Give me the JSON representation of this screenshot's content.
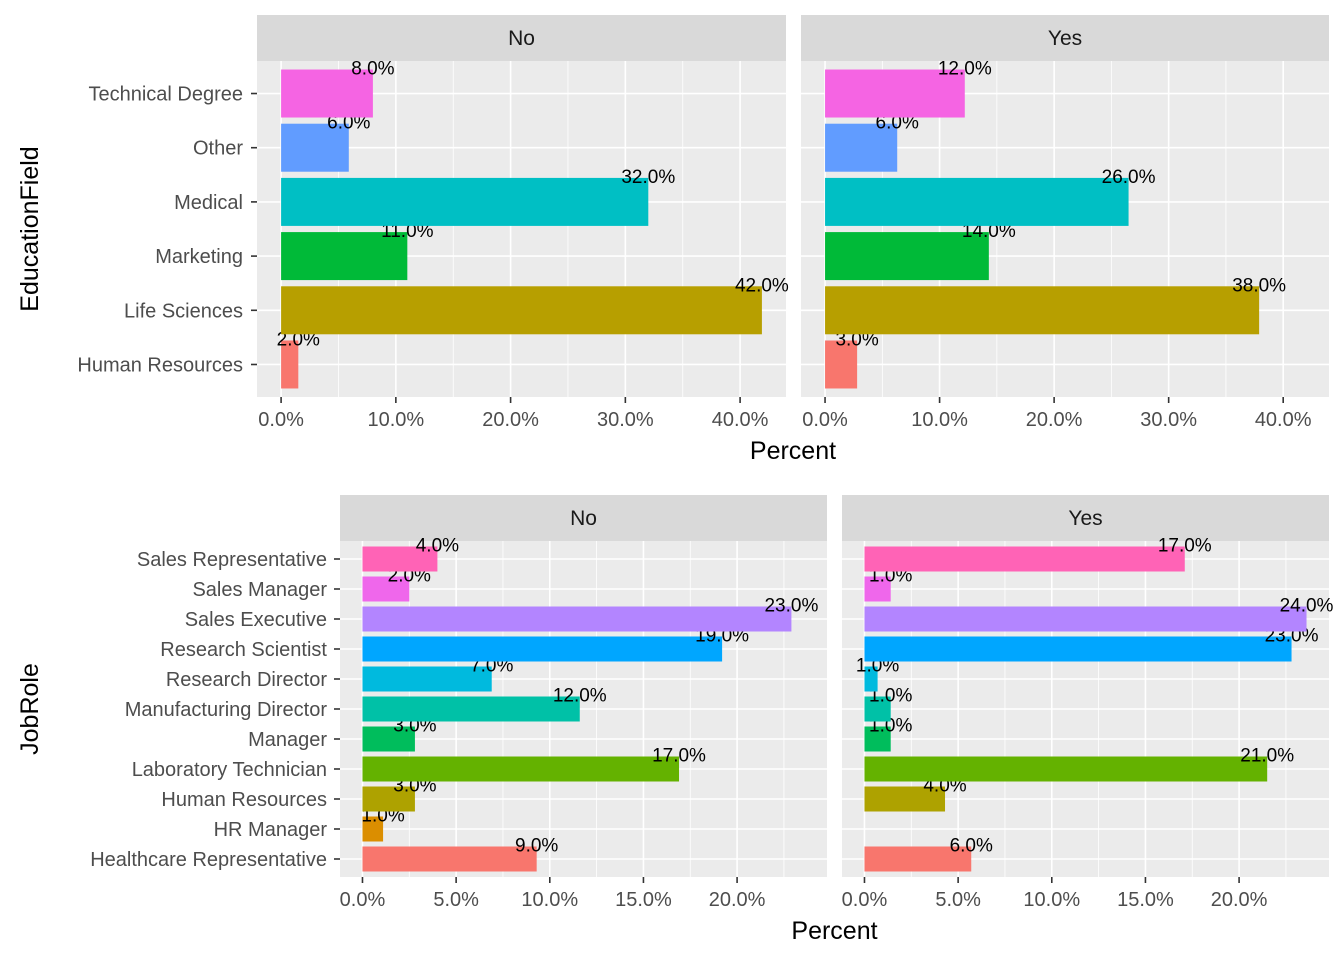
{
  "chart_data": [
    {
      "type": "bar",
      "orientation": "horizontal",
      "facet_strips": [
        "No",
        "Yes"
      ],
      "categories": [
        "Human Resources",
        "Life Sciences",
        "Marketing",
        "Medical",
        "Other",
        "Technical Degree"
      ],
      "colors": [
        "#F8766D",
        "#B79F00",
        "#00BA38",
        "#00BFC4",
        "#619CFF",
        "#F564E3"
      ],
      "facets": [
        {
          "strip": "No",
          "values": [
            1.5,
            41.9,
            11.0,
            32.0,
            5.9,
            8.0
          ],
          "labels": [
            "2.0%",
            "42.0%",
            "11.0%",
            "32.0%",
            "6.0%",
            "8.0%"
          ]
        },
        {
          "strip": "Yes",
          "values": [
            2.8,
            37.9,
            14.3,
            26.5,
            6.3,
            12.2
          ],
          "labels": [
            "3.0%",
            "38.0%",
            "14.0%",
            "26.0%",
            "6.0%",
            "12.0%"
          ]
        }
      ],
      "xticks": [
        0,
        10,
        20,
        30,
        40
      ],
      "xtick_labels": [
        "0.0%",
        "10.0%",
        "20.0%",
        "30.0%",
        "40.0%"
      ],
      "xlim": [
        -2.1,
        44.0
      ],
      "xlabel": "Percent",
      "ylabel": "EducationField",
      "grid": true,
      "legend": "none"
    },
    {
      "type": "bar",
      "orientation": "horizontal",
      "facet_strips": [
        "No",
        "Yes"
      ],
      "categories": [
        "Healthcare Representative",
        "HR Manager",
        "Human Resources",
        "Laboratory Technician",
        "Manager",
        "Manufacturing Director",
        "Research Director",
        "Research Scientist",
        "Sales Executive",
        "Sales Manager",
        "Sales Representative"
      ],
      "colors": [
        "#F8766D",
        "#DB8E00",
        "#AEA200",
        "#64B200",
        "#00BD5C",
        "#00C1A7",
        "#00BADE",
        "#00A6FF",
        "#B385FF",
        "#EF67EB",
        "#FF63B6"
      ],
      "facets": [
        {
          "strip": "No",
          "values": [
            9.3,
            1.1,
            2.8,
            16.9,
            2.8,
            11.6,
            6.9,
            19.2,
            22.9,
            2.5,
            4.0
          ],
          "labels": [
            "9.0%",
            "1.0%",
            "3.0%",
            "17.0%",
            "3.0%",
            "12.0%",
            "7.0%",
            "19.0%",
            "23.0%",
            "2.0%",
            "4.0%"
          ]
        },
        {
          "strip": "Yes",
          "values": [
            5.7,
            0.0,
            4.3,
            21.5,
            1.4,
            1.4,
            0.7,
            22.8,
            23.6,
            1.4,
            17.1
          ],
          "labels": [
            "6.0%",
            "",
            "4.0%",
            "21.0%",
            "1.0%",
            "1.0%",
            "1.0%",
            "23.0%",
            "24.0%",
            "1.0%",
            "17.0%"
          ]
        }
      ],
      "xticks": [
        0,
        5,
        10,
        15,
        20
      ],
      "xtick_labels": [
        "0.0%",
        "5.0%",
        "10.0%",
        "15.0%",
        "20.0%"
      ],
      "xlim": [
        -1.2,
        24.8
      ],
      "xlabel": "Percent",
      "ylabel": "JobRole",
      "grid": true,
      "legend": "none"
    }
  ]
}
